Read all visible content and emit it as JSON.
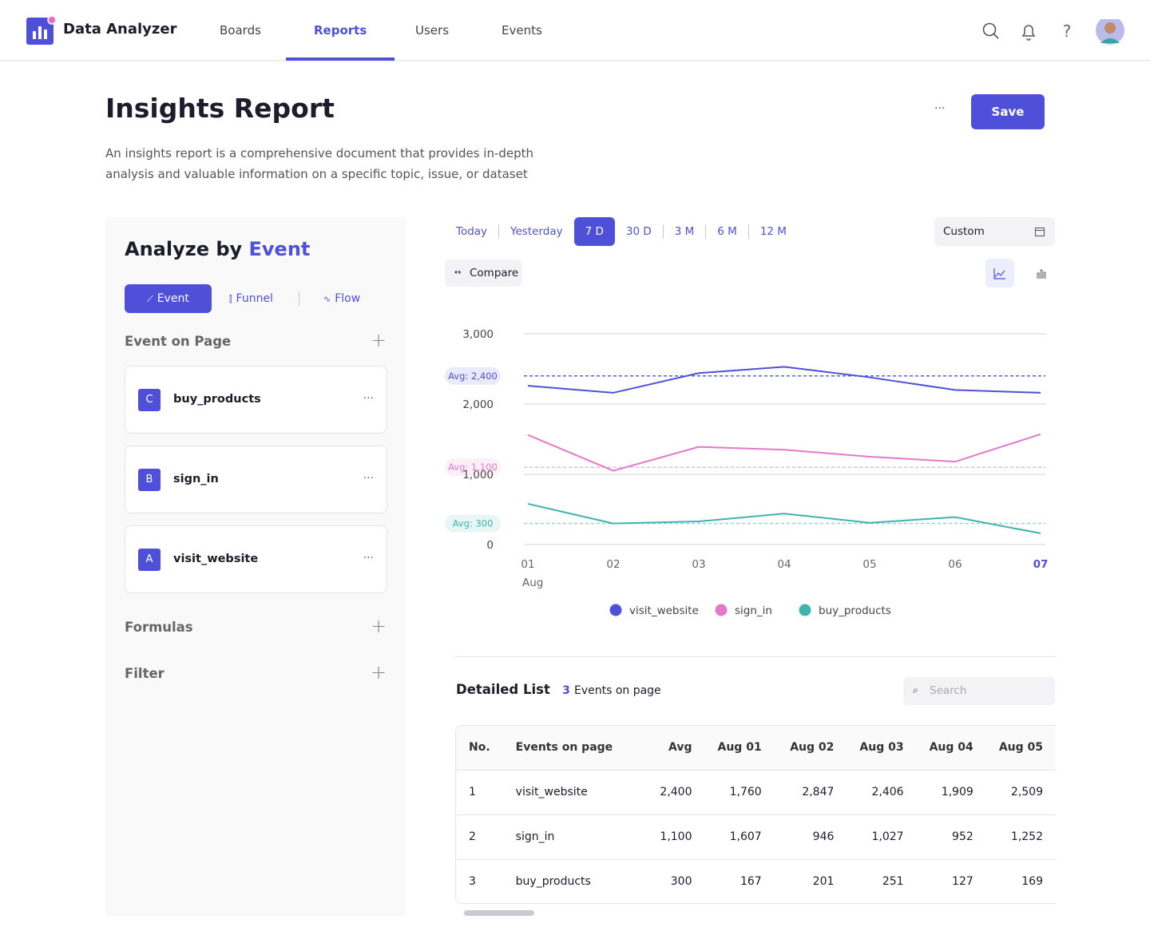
{
  "nav": {
    "brand": "Data Analyzer",
    "tabs": [
      "Boards",
      "Reports",
      "Users",
      "Events"
    ],
    "active": 1
  },
  "header": {
    "title": "Insights Report",
    "description": "An insights report is a comprehensive document that provides in-depth analysis and valuable information on a specific topic, issue, or dataset",
    "more": "···",
    "save": "Save"
  },
  "panel": {
    "title": "Analyze by",
    "title_highlight": "Event",
    "modes": [
      "Event",
      "Funnel",
      "Flow"
    ],
    "active_mode": 0,
    "section": "Event on Page",
    "events": [
      {
        "badge": "C",
        "name": "buy_products"
      },
      {
        "badge": "B",
        "name": "sign_in"
      },
      {
        "badge": "A",
        "name": "visit_website"
      }
    ],
    "formulas": "Formulas",
    "filter": "Filter"
  },
  "range": {
    "options": [
      "Today",
      "Yesterday",
      "7 D",
      "30 D",
      "3 M",
      "6 M",
      "12 M"
    ],
    "active": 2,
    "custom": "Custom",
    "compare": "Compare"
  },
  "chart_data": {
    "type": "line",
    "categories": [
      "01",
      "02",
      "03",
      "04",
      "05",
      "06",
      "07"
    ],
    "x_sublabel": "Aug",
    "selected_category": 6,
    "ylim": [
      0,
      3000
    ],
    "yticks": [
      0,
      {
        "value": 1000,
        "label": "1,000"
      },
      {
        "value": 2000,
        "label": "2,000"
      },
      {
        "value": 3000,
        "label": "3,000"
      }
    ],
    "grid": true,
    "series": [
      {
        "name": "visit_website",
        "color": "#4e50d9",
        "values": [
          2260,
          2160,
          2440,
          2530,
          2380,
          2200,
          2160
        ],
        "avg": 2400,
        "avg_label": "Avg: 2,400"
      },
      {
        "name": "sign_in",
        "color": "#e27ac9",
        "values": [
          1560,
          1050,
          1390,
          1350,
          1250,
          1180,
          1570
        ],
        "avg": 1100,
        "avg_label": "Avg: 1,100"
      },
      {
        "name": "buy_products",
        "color": "#3fb3ad",
        "values": [
          580,
          300,
          330,
          440,
          310,
          390,
          160
        ],
        "avg": 300,
        "avg_label": "Avg: 300"
      }
    ]
  },
  "table": {
    "title": "Detailed List",
    "count": "3",
    "count_suffix": "Events on page",
    "search": "Search",
    "columns": [
      "No.",
      "Events on page",
      "Avg",
      "Aug 01",
      "Aug 02",
      "Aug 03",
      "Aug 04",
      "Aug 05"
    ],
    "rows": [
      [
        "1",
        "visit_website",
        "2,400",
        "1,760",
        "2,847",
        "2,406",
        "1,909",
        "2,509"
      ],
      [
        "2",
        "sign_in",
        "1,100",
        "1,607",
        "946",
        "1,027",
        "952",
        "1,252"
      ],
      [
        "3",
        "buy_products",
        "300",
        "167",
        "201",
        "251",
        "127",
        "169"
      ]
    ]
  }
}
